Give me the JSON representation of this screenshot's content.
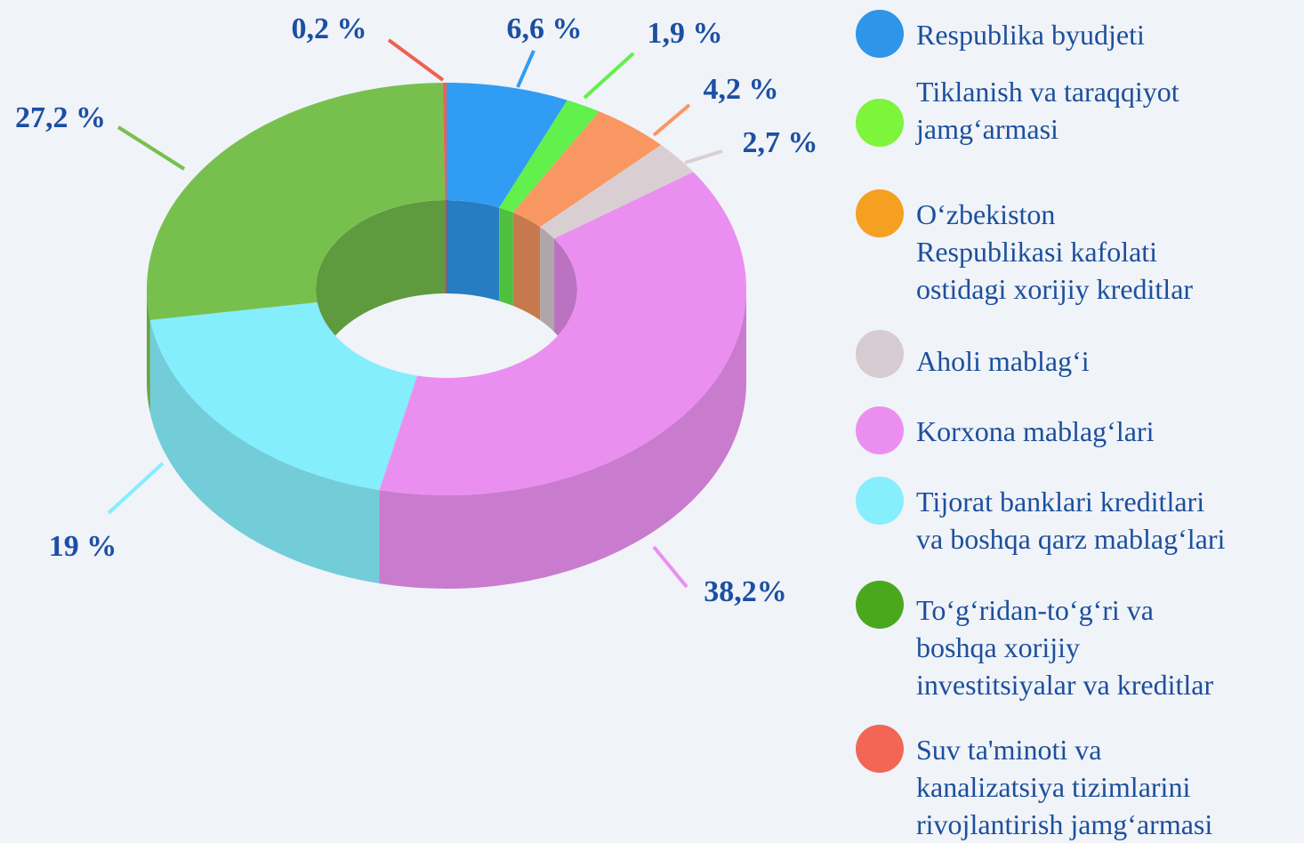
{
  "chart_data": {
    "type": "pie",
    "categories": [
      "Respublika byudjeti",
      "Tiklanish va taraqqiyot\njamg‘armasi",
      "O‘zbekiston\nRespublikasi kafolati\nostidagi xorijiy kreditlar",
      "Aholi mablag‘i",
      "Korxona mablag‘lari",
      "Tijorat banklari kreditlari\nva boshqa qarz mablag‘lari",
      "To‘g‘ridan-to‘g‘ri va\nboshqa xorijiy\ninvestitsiyalar va kreditlar",
      "Suv ta'minoti va\nkanalizatsiya tizimlarini\nrivojlantirish jamg‘armasi"
    ],
    "values": [
      6.6,
      1.9,
      4.2,
      2.7,
      38.2,
      19,
      27.2,
      0.2
    ],
    "value_labels": [
      "6,6 %",
      "1,9 %",
      "4,2 %",
      "2,7 %",
      "38,2%",
      "19 %",
      "27,2 %",
      "0,2 %"
    ],
    "colors": [
      "#309cf3",
      "#62f04c",
      "#f99762",
      "#d9cfd3",
      "#ea8ff0",
      "#84eefc",
      "#77c04e",
      "#f06050"
    ],
    "legend_colors": [
      "#2f95e8",
      "#7cf53a",
      "#f5a020",
      "#d6cbd0",
      "#ea8ff0",
      "#86eefc",
      "#4aa81e",
      "#f26656"
    ]
  }
}
